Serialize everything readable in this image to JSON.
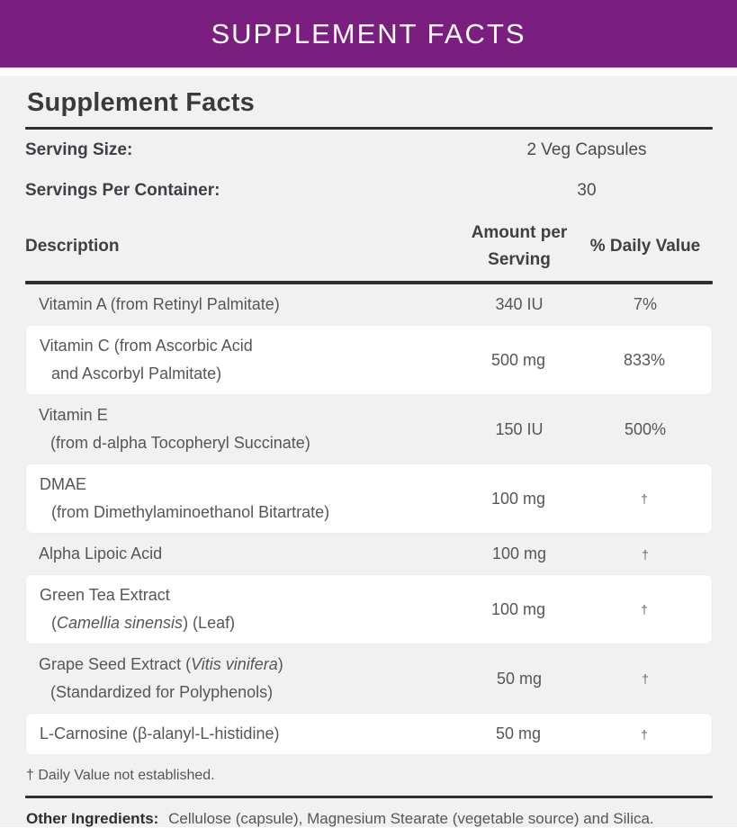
{
  "banner": {
    "title": "SUPPLEMENT FACTS",
    "bg_color": "#7a1f80",
    "text_color": "#ffffff"
  },
  "panel": {
    "title": "Supplement Facts",
    "bg_color": "#f2f1f2",
    "rule_color": "#2f2f31"
  },
  "serving": {
    "size_label": "Serving Size:",
    "size_value": "2 Veg Capsules",
    "per_container_label": "Servings Per Container:",
    "per_container_value": "30"
  },
  "table": {
    "headers": {
      "description": "Description",
      "amount": "Amount per Serving",
      "daily_value": "% Daily Value"
    },
    "rows": [
      {
        "name_lines": [
          [
            {
              "t": "Vitamin A (from Retinyl Palmitate)"
            }
          ]
        ],
        "amount": "340 IU",
        "daily_value": "7%",
        "highlight": false
      },
      {
        "name_lines": [
          [
            {
              "t": "Vitamin C (from Ascorbic Acid"
            }
          ],
          [
            {
              "t": "and Ascorbyl Palmitate)"
            }
          ]
        ],
        "amount": "500 mg",
        "daily_value": "833%",
        "highlight": true
      },
      {
        "name_lines": [
          [
            {
              "t": "Vitamin E"
            }
          ],
          [
            {
              "t": "(from d-alpha Tocopheryl Succinate)"
            }
          ]
        ],
        "amount": "150 IU",
        "daily_value": "500%",
        "highlight": false
      },
      {
        "name_lines": [
          [
            {
              "t": "DMAE"
            }
          ],
          [
            {
              "t": "(from Dimethylaminoethanol Bitartrate)"
            }
          ]
        ],
        "amount": "100 mg",
        "daily_value": "†",
        "highlight": true
      },
      {
        "name_lines": [
          [
            {
              "t": "Alpha Lipoic Acid"
            }
          ]
        ],
        "amount": "100 mg",
        "daily_value": "†",
        "highlight": false
      },
      {
        "name_lines": [
          [
            {
              "t": "Green Tea Extract"
            }
          ],
          [
            {
              "t": "("
            },
            {
              "t": "Camellia sinensis",
              "i": true
            },
            {
              "t": ") (Leaf)"
            }
          ]
        ],
        "amount": "100 mg",
        "daily_value": "†",
        "highlight": true
      },
      {
        "name_lines": [
          [
            {
              "t": "Grape Seed Extract ("
            },
            {
              "t": "Vitis vinifera",
              "i": true
            },
            {
              "t": ")"
            }
          ],
          [
            {
              "t": "(Standardized for Polyphenols)"
            }
          ]
        ],
        "amount": "50 mg",
        "daily_value": "†",
        "highlight": false
      },
      {
        "name_lines": [
          [
            {
              "t": "L-Carnosine (β-alanyl-L-histidine)"
            }
          ]
        ],
        "amount": "50 mg",
        "daily_value": "†",
        "highlight": true
      }
    ]
  },
  "footnote": "† Daily Value not established.",
  "other_ingredients": {
    "label": "Other Ingredients:",
    "text": "Cellulose (capsule), Magnesium Stearate (vegetable source) and Silica."
  }
}
